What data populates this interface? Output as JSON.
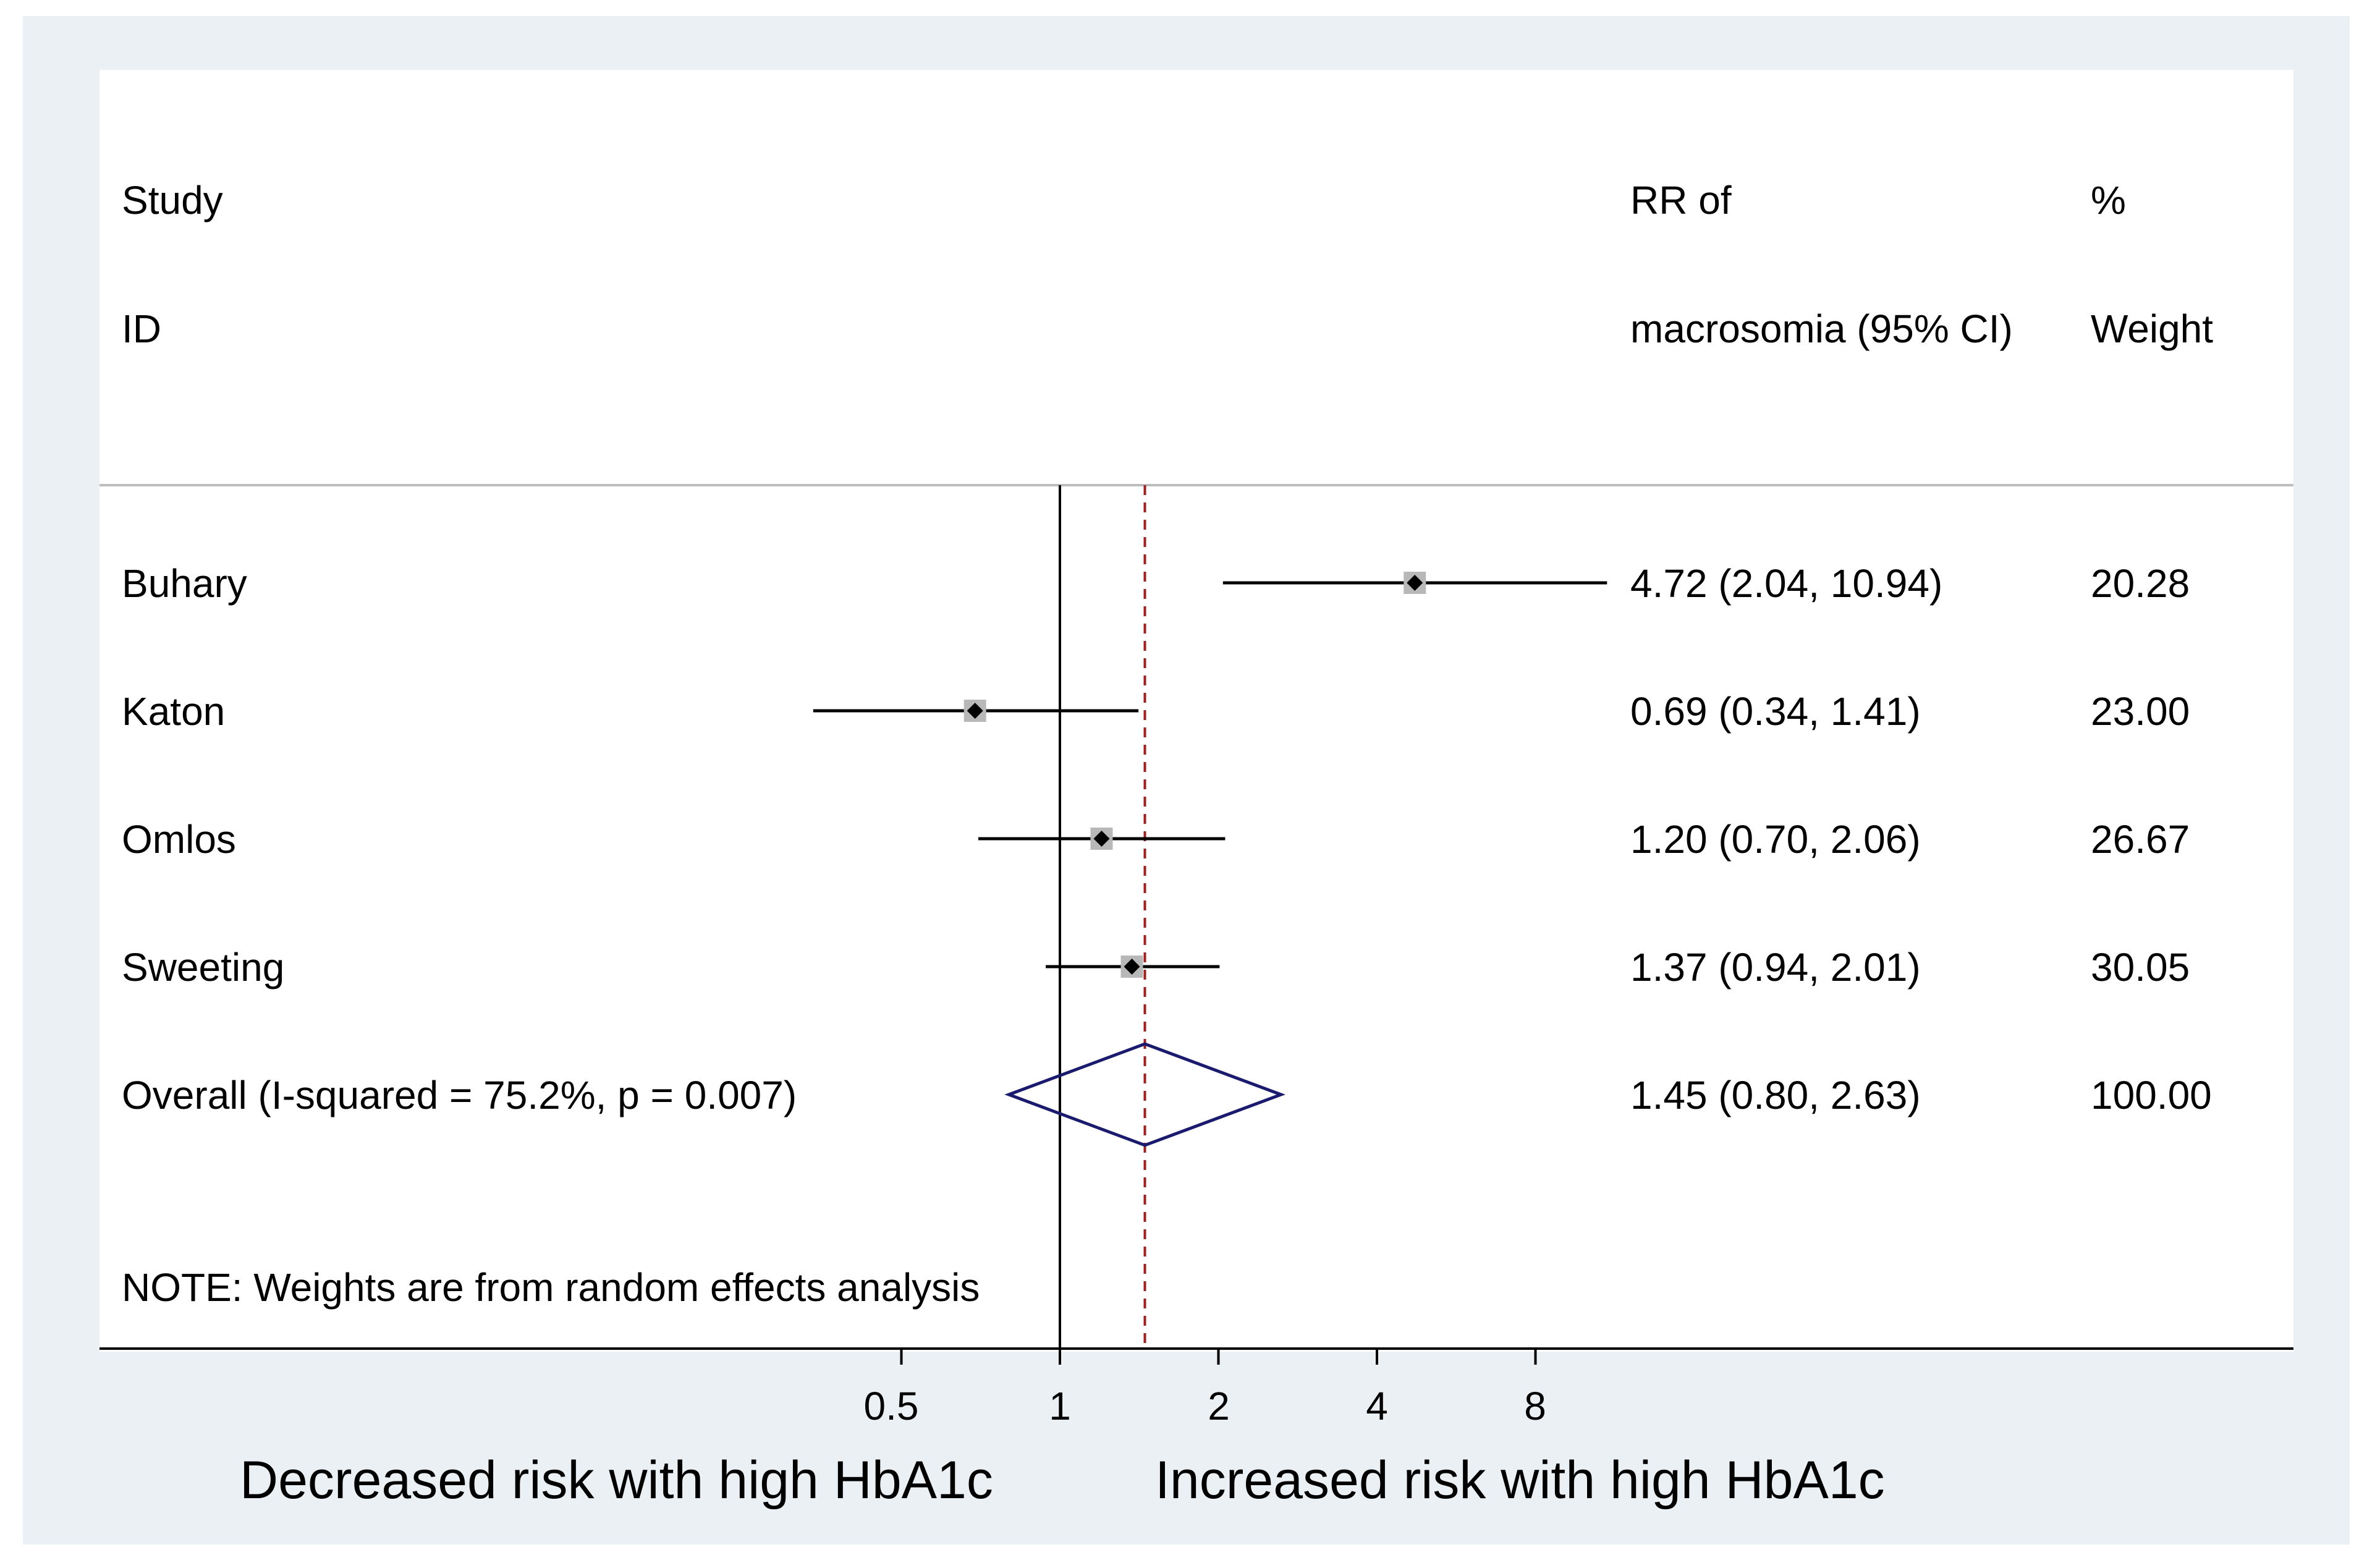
{
  "header": {
    "col1_line1": "Study",
    "col1_line2": "ID",
    "col2_line1": "RR of",
    "col2_line2": "macrosomia (95% CI)",
    "col3_line1": "%",
    "col3_line2": "Weight"
  },
  "note": "NOTE: Weights are from random effects analysis",
  "xaxis": {
    "ticks": [
      "0.5",
      "1",
      "2",
      "4",
      "8"
    ],
    "left_label": "Decreased risk with high HbA1c",
    "right_label": "Increased risk with high HbA1c"
  },
  "rows": [
    {
      "study": "Buhary",
      "ci_text": "4.72 (2.04, 10.94)",
      "weight": "20.28"
    },
    {
      "study": "Katon",
      "ci_text": "0.69 (0.34, 1.41)",
      "weight": "23.00"
    },
    {
      "study": "Omlos",
      "ci_text": "1.20 (0.70, 2.06)",
      "weight": "26.67"
    },
    {
      "study": "Sweeting",
      "ci_text": "1.37 (0.94, 2.01)",
      "weight": "30.05"
    }
  ],
  "overall": {
    "label": "Overall  (I-squared = 75.2%, p = 0.007)",
    "ci_text": "1.45 (0.80, 2.63)",
    "weight": "100.00"
  },
  "colors": {
    "frame": "#eaf0f3",
    "dashed_line": "#a02020",
    "diamond": "#1a1a6e",
    "weight_box": "#b8b8b8"
  },
  "chart_data": {
    "type": "scatter",
    "x_scale": "log",
    "x_ticks": [
      0.5,
      1,
      2,
      4,
      8
    ],
    "null_line": 1,
    "series": [
      {
        "name": "",
        "points": [
          {
            "label": "Buhary",
            "rr": 4.72,
            "lo": 2.04,
            "hi": 10.94,
            "weight": 20.28
          },
          {
            "label": "Katon",
            "rr": 0.69,
            "lo": 0.34,
            "hi": 1.41,
            "weight": 23.0
          },
          {
            "label": "Omlos",
            "rr": 1.2,
            "lo": 0.7,
            "hi": 2.06,
            "weight": 26.67
          },
          {
            "label": "Sweeting",
            "rr": 1.37,
            "lo": 0.94,
            "hi": 2.01,
            "weight": 30.05
          }
        ]
      }
    ],
    "overall": {
      "rr": 1.45,
      "lo": 0.8,
      "hi": 2.63,
      "weight": 100.0
    }
  }
}
